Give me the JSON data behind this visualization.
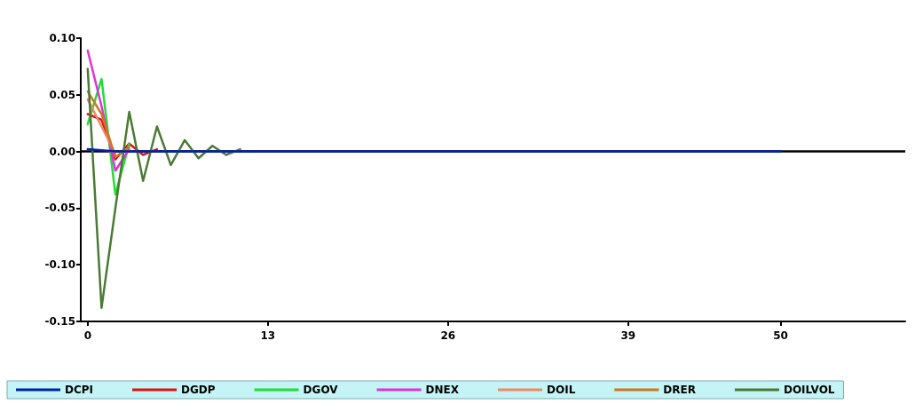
{
  "chart_data": {
    "type": "line",
    "x": [
      0,
      1,
      2,
      3,
      4,
      5,
      6,
      7,
      8,
      9,
      10,
      11,
      12,
      13,
      14,
      15,
      16,
      17,
      18,
      19,
      20,
      21,
      22,
      23,
      24,
      25,
      26,
      27,
      28,
      29,
      30,
      31,
      32,
      33,
      34,
      35,
      36,
      37,
      38,
      39,
      40,
      41,
      42,
      43,
      44,
      45,
      46,
      47,
      48,
      49,
      50
    ],
    "series": [
      {
        "name": "DCPI",
        "color": "#0022aa",
        "values": [
          0.002,
          0.001,
          0,
          0,
          0,
          0,
          0,
          0,
          0,
          0,
          0,
          0,
          0,
          0,
          0,
          0,
          0,
          0,
          0,
          0,
          0,
          0,
          0,
          0,
          0,
          0,
          0,
          0,
          0,
          0,
          0,
          0,
          0,
          0,
          0,
          0,
          0,
          0,
          0,
          0,
          0,
          0,
          0,
          0,
          0,
          0,
          0,
          0,
          0,
          0,
          0
        ]
      },
      {
        "name": "DGDP",
        "color": "#dd1111",
        "x": [
          0,
          1,
          2,
          3,
          4,
          5
        ],
        "values": [
          0.033,
          0.028,
          -0.007,
          0.007,
          -0.003,
          0.002
        ]
      },
      {
        "name": "DGOV",
        "color": "#22dd33",
        "x": [
          0,
          1,
          2,
          3
        ],
        "values": [
          0.024,
          0.064,
          -0.038,
          0.007
        ]
      },
      {
        "name": "DNEX",
        "color": "#dd33dd",
        "x": [
          0,
          1,
          2,
          3
        ],
        "values": [
          0.089,
          0.04,
          -0.017,
          0.002
        ]
      },
      {
        "name": "DOIL",
        "color": "#ee8866",
        "x": [
          0,
          1,
          2
        ],
        "values": [
          0.046,
          0.022,
          -0.002
        ]
      },
      {
        "name": "DRER",
        "color": "#cc7722",
        "x": [
          0,
          1,
          2,
          3
        ],
        "values": [
          0.053,
          0.033,
          -0.005,
          0.004
        ]
      },
      {
        "name": "DOILVOL",
        "color": "#4a7a33",
        "x": [
          0,
          1,
          2,
          3,
          4,
          5,
          6,
          7,
          8,
          9,
          10,
          11
        ],
        "values": [
          0.073,
          -0.138,
          -0.05,
          0.035,
          -0.026,
          0.022,
          -0.012,
          0.01,
          -0.006,
          0.005,
          -0.003,
          0.002
        ]
      }
    ],
    "xlim": [
      -0.5,
      59
    ],
    "xticks": [
      0,
      13,
      26,
      39,
      50
    ],
    "ylim": [
      -0.15,
      0.1
    ],
    "yticks": [
      {
        "value": -0.15,
        "label": "-0.15"
      },
      {
        "value": -0.1,
        "label": "-0.10"
      },
      {
        "value": -0.05,
        "label": "-0.05"
      },
      {
        "value": 0,
        "label": "0.00"
      },
      {
        "value": 0.05,
        "label": "0.05"
      },
      {
        "value": 0.1,
        "label": "0.10"
      }
    ],
    "ref_lines": [
      {
        "axis": "y",
        "value": 0,
        "color": "#000000"
      }
    ],
    "legend": "bottom",
    "grid": false,
    "marker": "none",
    "line_style": "solid"
  }
}
